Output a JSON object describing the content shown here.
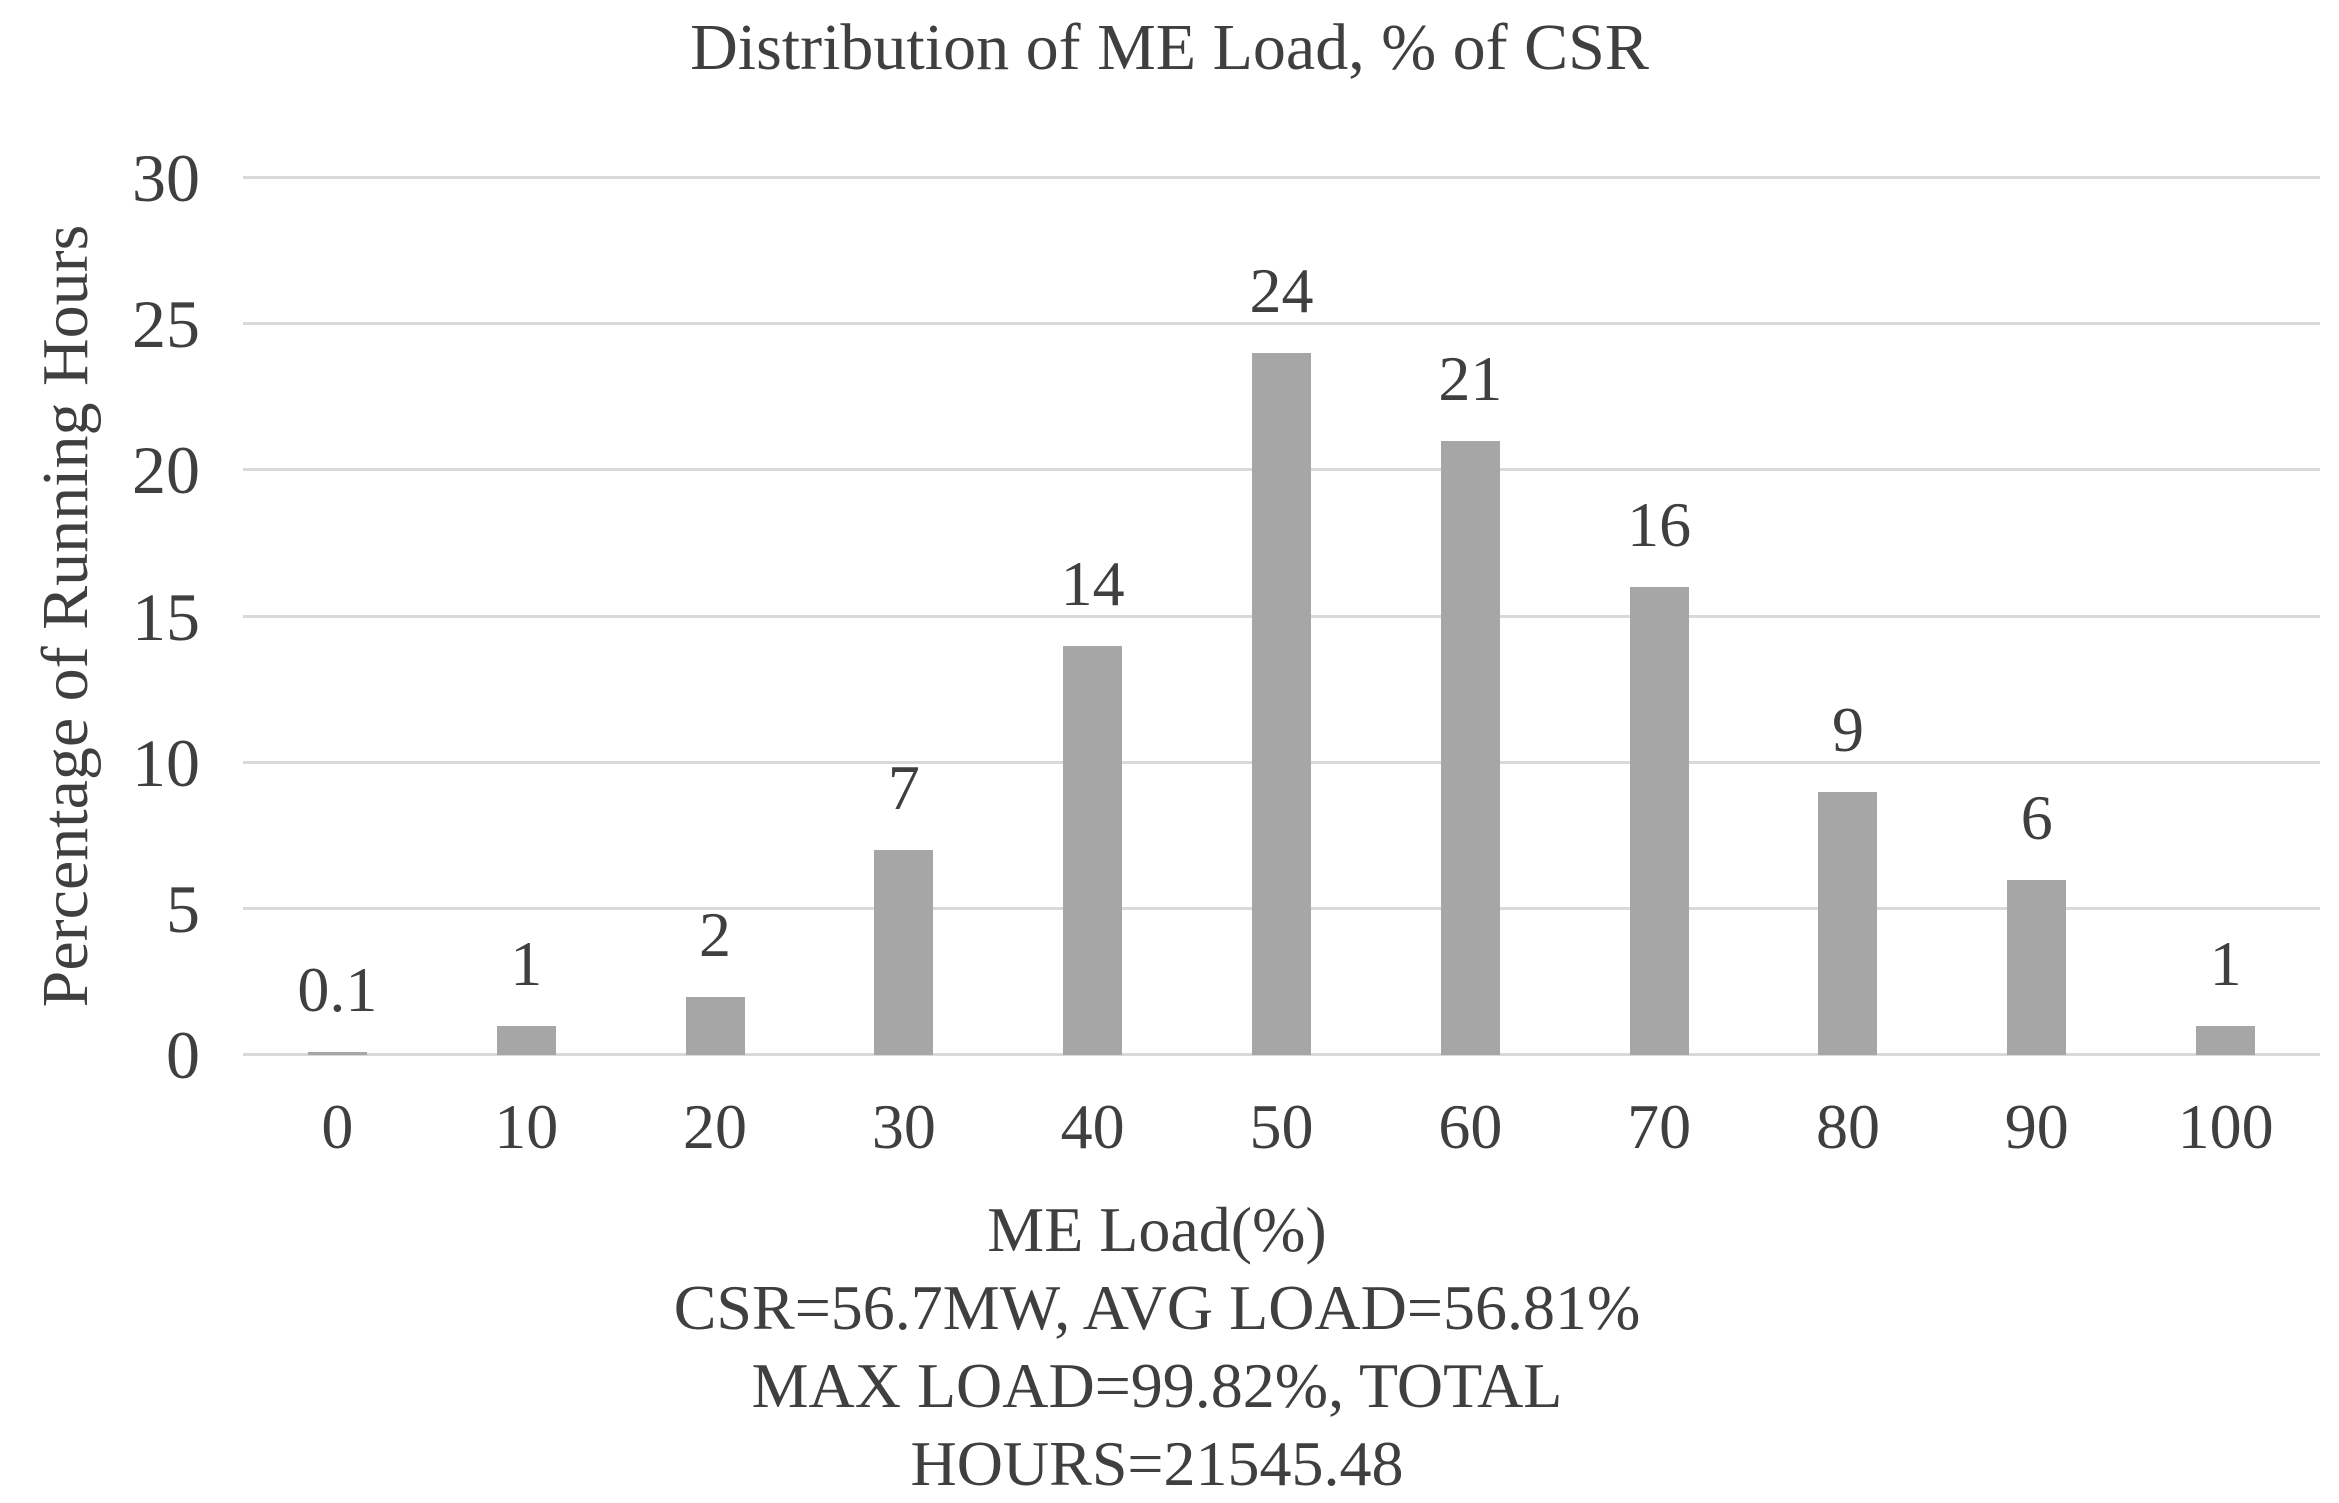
{
  "chart_data": {
    "type": "bar",
    "title": "Distribution of ME Load, % of CSR",
    "xlabel": "ME Load(%)",
    "ylabel": "Percentage of Running Hours",
    "categories": [
      "0",
      "10",
      "20",
      "30",
      "40",
      "50",
      "60",
      "70",
      "80",
      "90",
      "100"
    ],
    "values": [
      0.1,
      1,
      2,
      7,
      14,
      24,
      21,
      16,
      9,
      6,
      1
    ],
    "value_labels": [
      "0.1",
      "1",
      "2",
      "7",
      "14",
      "24",
      "21",
      "16",
      "9",
      "6",
      "1"
    ],
    "ylim": [
      0,
      30
    ],
    "ytick_step": 5,
    "ytick_labels": [
      "0",
      "5",
      "10",
      "15",
      "20",
      "25",
      "30"
    ],
    "grid": true,
    "legend": false,
    "annotations": [
      "CSR=56.7MW, AVG LOAD=56.81%",
      "MAX LOAD=99.82%, TOTAL  HOURS=21545.48"
    ]
  },
  "colors": {
    "bar": "#a6a6a6",
    "gridline": "#d9d9d9",
    "text": "#3f3f3f",
    "background": "#ffffff"
  }
}
